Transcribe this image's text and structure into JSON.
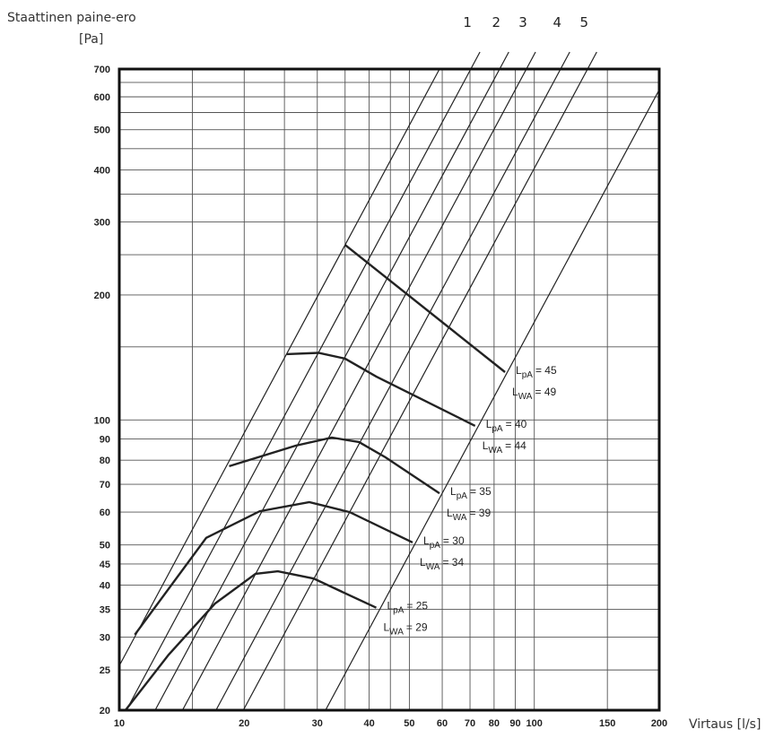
{
  "chart_data": {
    "type": "loglog-lines",
    "y_title_lines": [
      "Staattinen paine-ero",
      "[Pa]"
    ],
    "x_title": "Virtaus [l/s]",
    "log_x": true,
    "log_y": true,
    "grid": true,
    "xlim": [
      10,
      200
    ],
    "ylim": [
      20,
      700
    ],
    "xticks": [
      10,
      20,
      30,
      40,
      50,
      60,
      70,
      80,
      90,
      100,
      150,
      200
    ],
    "yticks": [
      20,
      25,
      30,
      35,
      40,
      45,
      50,
      60,
      70,
      80,
      90,
      100,
      200,
      300,
      400,
      500,
      600,
      700
    ],
    "xgrid_minor": [
      15,
      25,
      35,
      45
    ],
    "ygrid_minor": [
      150,
      250,
      350,
      450,
      550,
      650
    ],
    "line_color": "#222222",
    "lines": [
      {
        "q": [
          10,
          59.1
        ],
        "p": [
          25.6,
          700
        ]
      },
      {
        "label": "1",
        "q": [
          10.4,
          70.3
        ],
        "p": [
          20,
          700
        ]
      },
      {
        "label": "2",
        "q": [
          12.2,
          82.5
        ],
        "p": [
          20,
          700
        ]
      },
      {
        "label": "3",
        "q": [
          14.2,
          95.7
        ],
        "p": [
          20,
          700
        ]
      },
      {
        "label": "4",
        "q": [
          17.1,
          115.7
        ],
        "p": [
          20,
          700
        ]
      },
      {
        "label": "5",
        "q": [
          19.9,
          134.4
        ],
        "p": [
          20,
          700
        ]
      },
      {
        "q": [
          31.4,
          200
        ],
        "p": [
          20,
          624
        ]
      }
    ],
    "curves": [
      {
        "q": [
          35.0,
          85.0
        ],
        "p": [
          264,
          130.4
        ],
        "labels": [
          {
            "main": "L",
            "sub": "pA",
            "rest": "= 45"
          },
          {
            "main": "L",
            "sub": "WA",
            "rest": "= 49"
          }
        ]
      },
      {
        "q": [
          25.3,
          30.2,
          35.0,
          41.6,
          72.0
        ],
        "p": [
          144.1,
          145.1,
          140.5,
          127.2,
          96.8
        ],
        "labels": [
          {
            "main": "L",
            "sub": "pA",
            "rest": "= 40"
          },
          {
            "main": "L",
            "sub": "WA",
            "rest": "= 44"
          }
        ]
      },
      {
        "q": [
          18.4,
          26.6,
          32.5,
          37.8,
          43.8,
          59.1
        ],
        "p": [
          77.4,
          86.7,
          90.7,
          88.5,
          81.3,
          66.6
        ],
        "labels": [
          {
            "main": "L",
            "sub": "pA",
            "rest": "= 35"
          },
          {
            "main": "L",
            "sub": "WA",
            "rest": "= 39"
          }
        ]
      },
      {
        "q": [
          10.9,
          16.2,
          21.8,
          28.7,
          35.9,
          50.9
        ],
        "p": [
          30.4,
          52.0,
          60.3,
          63.4,
          60,
          50.7
        ],
        "labels": [
          {
            "main": "L",
            "sub": "pA",
            "rest": "= 30"
          },
          {
            "main": "L",
            "sub": "WA",
            "rest": "= 34"
          }
        ]
      },
      {
        "q": [
          10.35,
          13.15,
          17.0,
          21.3,
          24.1,
          29.4,
          41.6
        ],
        "p": [
          20,
          27.2,
          36.1,
          42.6,
          43.2,
          41.5,
          35.3
        ],
        "labels": [
          {
            "main": "L",
            "sub": "pA",
            "rest": "= 25"
          },
          {
            "main": "L",
            "sub": "WA",
            "rest": "= 29"
          }
        ]
      }
    ]
  }
}
